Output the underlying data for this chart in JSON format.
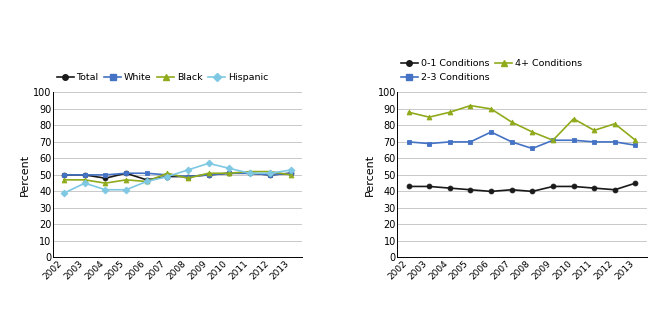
{
  "years": [
    2002,
    2003,
    2004,
    2005,
    2006,
    2007,
    2008,
    2009,
    2010,
    2011,
    2012,
    2013
  ],
  "left_chart": {
    "Total": [
      50,
      50,
      48,
      51,
      47,
      49,
      49,
      50,
      51,
      51,
      50,
      51
    ],
    "White": [
      50,
      50,
      50,
      51,
      51,
      50,
      49,
      50,
      51,
      51,
      50,
      51
    ],
    "Black": [
      47,
      47,
      45,
      47,
      46,
      51,
      48,
      51,
      51,
      52,
      52,
      50
    ],
    "Hispanic": [
      39,
      45,
      41,
      41,
      46,
      49,
      53,
      57,
      54,
      51,
      51,
      53
    ]
  },
  "right_chart": {
    "0-1 Conditions": [
      43,
      43,
      42,
      41,
      40,
      41,
      40,
      43,
      43,
      42,
      41,
      45
    ],
    "2-3 Conditions": [
      70,
      69,
      70,
      70,
      76,
      70,
      66,
      71,
      71,
      70,
      70,
      68
    ],
    "4+ Conditions": [
      88,
      85,
      88,
      92,
      90,
      82,
      76,
      71,
      84,
      77,
      81,
      71
    ]
  },
  "left_series": [
    "Total",
    "White",
    "Black",
    "Hispanic"
  ],
  "right_series": [
    "0-1 Conditions",
    "2-3 Conditions",
    "4+ Conditions"
  ],
  "left_colors": [
    "#1a1a1a",
    "#4472c4",
    "#8faa1b",
    "#7ec8e3"
  ],
  "right_colors": [
    "#1a1a1a",
    "#4472c4",
    "#8faa1b"
  ],
  "left_markers": [
    "o",
    "s",
    "^",
    "D"
  ],
  "right_markers": [
    "o",
    "s",
    "^"
  ],
  "ylabel": "Percent",
  "ylim": [
    0,
    100
  ],
  "yticks": [
    0,
    10,
    20,
    30,
    40,
    50,
    60,
    70,
    80,
    90,
    100
  ],
  "background": "#ffffff",
  "grid_color": "#c0c0c0"
}
